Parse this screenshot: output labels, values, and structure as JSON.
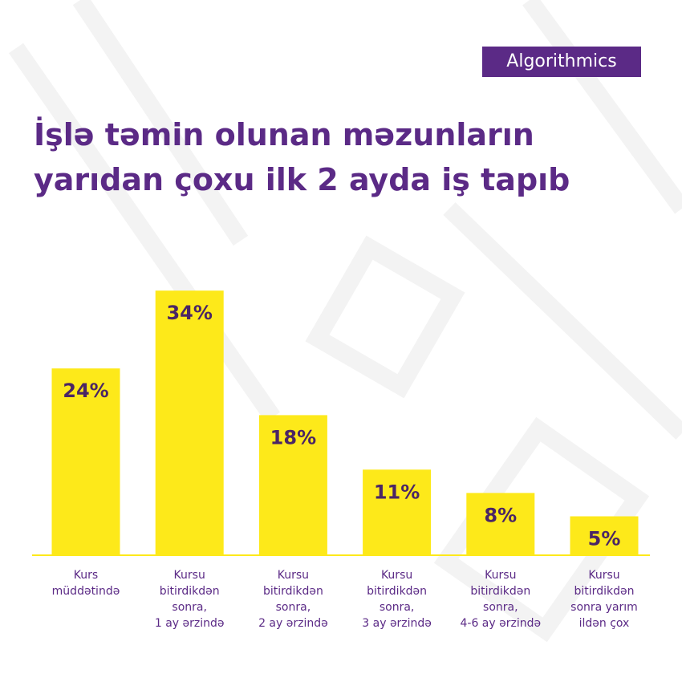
{
  "brand": "Algorithmics",
  "chart_data": {
    "type": "bar",
    "title": "İşlə təmin olunan məzunların yarıdan çoxu ilk 2 ayda iş tapıb",
    "categories": [
      [
        "Kurs",
        "müddətində"
      ],
      [
        "Kursu",
        "bitirdikdən",
        "sonra,",
        "1 ay ərzində"
      ],
      [
        "Kursu",
        "bitirdikdən",
        "sonra,",
        "2 ay ərzində"
      ],
      [
        "Kursu",
        "bitirdikdən",
        "sonra,",
        "3 ay ərzində"
      ],
      [
        "Kursu",
        "bitirdikdən",
        "sonra,",
        "4-6 ay ərzində"
      ],
      [
        "Kursu",
        "bitirdikdən",
        "sonra yarım",
        "ildən çox"
      ]
    ],
    "values": [
      24,
      34,
      18,
      11,
      8,
      5
    ],
    "value_labels": [
      "24%",
      "34%",
      "18%",
      "11%",
      "8%",
      "5%"
    ],
    "color": "#fde91a"
  }
}
